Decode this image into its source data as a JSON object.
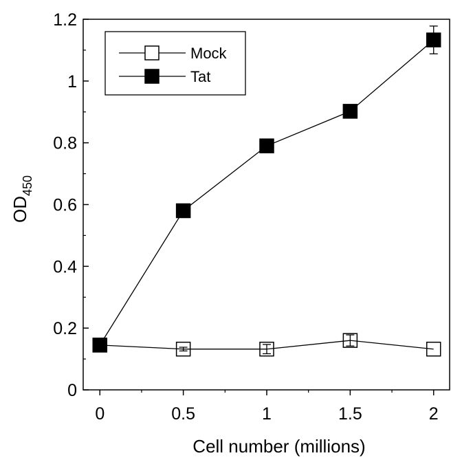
{
  "chart_data": {
    "type": "line",
    "xlabel": "Cell number (millions)",
    "ylabel": {
      "main": "OD",
      "subscript": "450"
    },
    "xlim": [
      -0.1,
      2.1
    ],
    "ylim": [
      0,
      1.2
    ],
    "x_ticks": [
      0,
      0.5,
      1,
      1.5,
      2
    ],
    "x_tick_labels": [
      "0",
      "0.5",
      "1",
      "1.5",
      "2"
    ],
    "y_ticks": [
      0,
      0.2,
      0.4,
      0.6,
      0.8,
      1.0,
      1.2
    ],
    "y_tick_labels": [
      "0",
      "0.2",
      "0.4",
      "0.6",
      "0.8",
      "1",
      "1.2"
    ],
    "grid": false,
    "legend": {
      "position": "top-left"
    },
    "x": [
      0,
      0.5,
      1,
      1.5,
      2
    ],
    "series": [
      {
        "name": "Mock",
        "marker": "open-square",
        "y": [
          0.145,
          0.132,
          0.132,
          0.16,
          0.132
        ],
        "error": [
          0.0,
          0.006,
          0.015,
          0.018,
          0.0
        ]
      },
      {
        "name": "Tat",
        "marker": "filled-square",
        "y": [
          0.145,
          0.58,
          0.79,
          0.902,
          1.133
        ],
        "error": [
          0.0,
          0.0,
          0.0,
          0.0,
          0.045
        ]
      }
    ]
  }
}
